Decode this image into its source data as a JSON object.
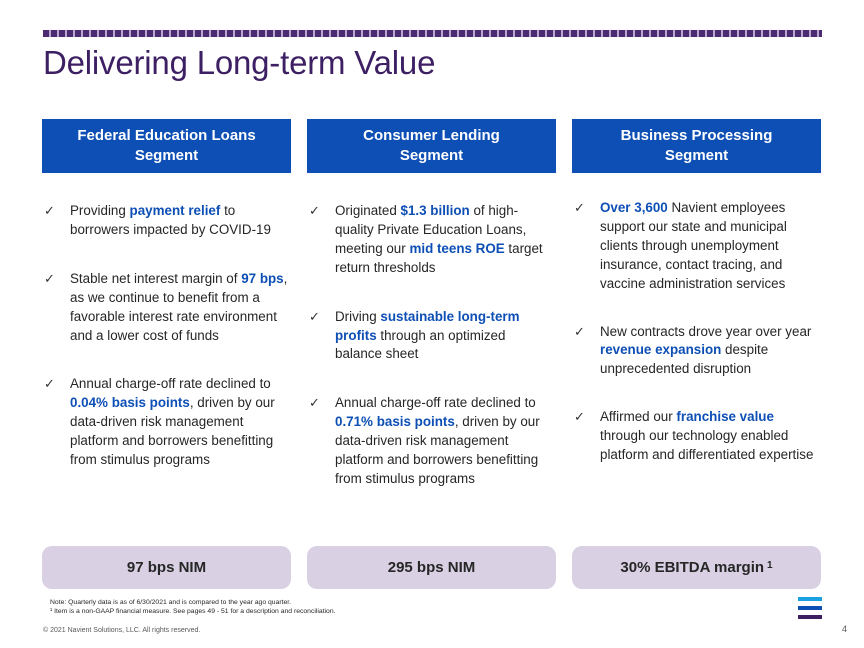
{
  "title": "Delivering Long-term Value",
  "columns": [
    {
      "header": "Federal Education Loans\nSegment",
      "bullets": [
        [
          {
            "t": "Providing "
          },
          {
            "t": "payment relief",
            "hl": true
          },
          {
            "t": " to borrowers impacted by COVID-19"
          }
        ],
        [
          {
            "t": "Stable net interest margin of "
          },
          {
            "t": "97 bps",
            "hl": true
          },
          {
            "t": ", as we continue to benefit from a favorable interest rate environment and a lower cost of funds"
          }
        ],
        [
          {
            "t": "Annual charge-off rate declined to "
          },
          {
            "t": "0.04% basis points",
            "hl": true
          },
          {
            "t": ", driven by our data-driven risk management platform and borrowers benefitting from stimulus programs"
          }
        ]
      ],
      "metric": "97 bps NIM",
      "metric_sup": ""
    },
    {
      "header": "Consumer Lending\nSegment",
      "bullets": [
        [
          {
            "t": "Originated "
          },
          {
            "t": "$1.3 billion",
            "hl": true
          },
          {
            "t": " of high-quality Private Education Loans, meeting our "
          },
          {
            "t": "mid teens ROE",
            "hl": true
          },
          {
            "t": " target return thresholds"
          }
        ],
        [
          {
            "t": "Driving "
          },
          {
            "t": "sustainable long-term profits",
            "hl": true
          },
          {
            "t": " through an optimized balance sheet"
          }
        ],
        [
          {
            "t": "Annual charge-off rate declined to "
          },
          {
            "t": "0.71% basis points",
            "hl": true
          },
          {
            "t": ", driven by our data-driven risk management platform and borrowers benefitting from stimulus programs"
          }
        ]
      ],
      "metric": "295 bps NIM",
      "metric_sup": ""
    },
    {
      "header": "Business Processing\nSegment",
      "bullets": [
        [
          {
            "t": "Over 3,600",
            "hl": true
          },
          {
            "t": " Navient employees support our state and municipal clients through unemployment insurance, contact tracing, and vaccine administration services"
          }
        ],
        [
          {
            "t": "New contracts drove year over year "
          },
          {
            "t": "revenue expansion",
            "hl": true
          },
          {
            "t": " despite unprecedented disruption"
          }
        ],
        [
          {
            "t": "Affirmed our "
          },
          {
            "t": "franchise value",
            "hl": true
          },
          {
            "t": " through our technology enabled platform and differentiated expertise"
          }
        ]
      ],
      "metric": "30% EBITDA margin",
      "metric_sup": "1"
    }
  ],
  "notes": {
    "line1": "Note: Quarterly data is as of 6/30/2021 and is compared to the year ago quarter.",
    "line2": "¹ Item is a non-GAAP financial measure.  See pages 49 - 51 for a description and reconciliation."
  },
  "copyright": "© 2021 Navient Solutions, LLC. All rights reserved.",
  "page_number": "4",
  "check_glyph": "✓",
  "colors": {
    "accent_blue": "#0d4fb5",
    "title_purple": "#3d1f63",
    "metric_bg": "#d9d0e3",
    "logo_stripes": [
      "#1ba1e2",
      "#0d4fb5",
      "#3d1f63"
    ]
  },
  "logo_icon": "navient-stripes-logo"
}
